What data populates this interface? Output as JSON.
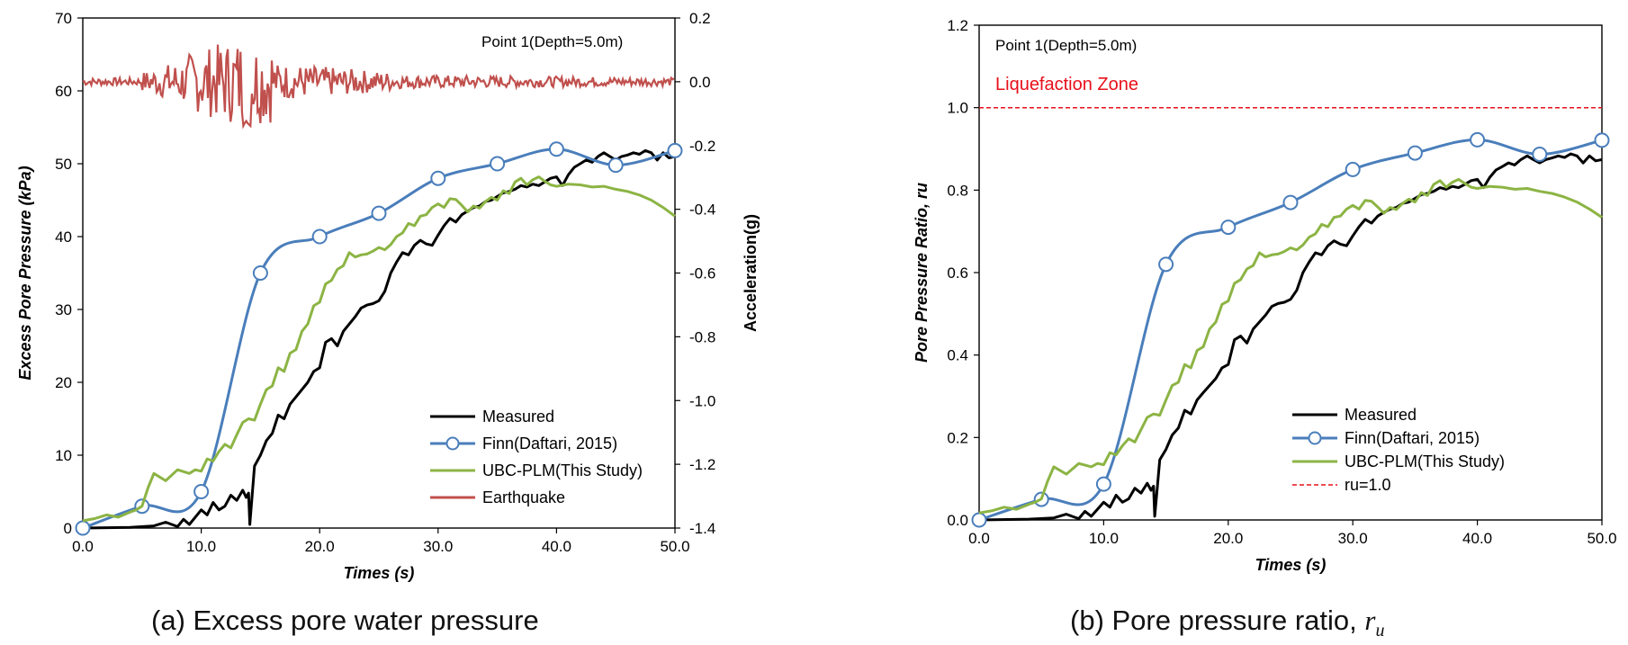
{
  "chart_data": [
    {
      "type": "line",
      "id": "a",
      "annotation": "Point 1(Depth=5.0m)",
      "xlabel": "Times (s)",
      "ylabel": "Excess Pore Pressure (kPa)",
      "y2label": "Acceleration(g)",
      "xlim": [
        0,
        50
      ],
      "ylim": [
        0,
        70
      ],
      "y2lim": [
        -1.4,
        0.2
      ],
      "x_ticks": [
        "0.0",
        "10.0",
        "20.0",
        "30.0",
        "40.0",
        "50.0"
      ],
      "y_ticks": [
        "0",
        "10",
        "20",
        "30",
        "40",
        "50",
        "60",
        "70"
      ],
      "y2_ticks": [
        "-1.4",
        "-1.2",
        "-1.0",
        "-0.8",
        "-0.6",
        "-0.4",
        "-0.2",
        "0.0",
        "0.2"
      ],
      "legend_position": "bottom-right",
      "series": [
        {
          "name": "Measured",
          "color": "#000000",
          "marker": "none",
          "axis": "left",
          "x": [
            0,
            4,
            6,
            7,
            8,
            8.5,
            9,
            9.5,
            10,
            10.5,
            11,
            11.5,
            12,
            12.5,
            13,
            13.5,
            13.8,
            14,
            14.1,
            14.3,
            14.5,
            15,
            15.5,
            16,
            16.5,
            17,
            17.5,
            18,
            18.5,
            19,
            19.5,
            20,
            20.5,
            21,
            21.5,
            22,
            22.5,
            23,
            23.5,
            24,
            24.5,
            25,
            25.5,
            26,
            26.5,
            27,
            27.5,
            28,
            28.5,
            29,
            29.5,
            30,
            30.5,
            31,
            31.5,
            32,
            32.5,
            33,
            33.5,
            34,
            34.5,
            35,
            35.5,
            36,
            36.5,
            37,
            37.5,
            38,
            38.5,
            39,
            39.5,
            40,
            40.5,
            41,
            41.5,
            42,
            42.5,
            43,
            43.5,
            44,
            44.5,
            45,
            45.5,
            46,
            46.5,
            47,
            47.5,
            48,
            48.5,
            49,
            49.5,
            50
          ],
          "values": [
            0,
            0.1,
            0.3,
            0.8,
            0.2,
            1.2,
            0.5,
            1.5,
            2.5,
            1.8,
            3.5,
            2.5,
            3,
            4.5,
            3.8,
            5.2,
            4.2,
            4.8,
            0.5,
            4.5,
            8.5,
            10,
            12,
            13,
            15.5,
            15,
            17,
            18,
            19,
            20,
            21.5,
            22,
            25.5,
            26,
            25,
            27,
            28,
            29,
            30.2,
            30.6,
            30.8,
            31.2,
            32.5,
            35,
            36.5,
            37.8,
            37.5,
            38.8,
            39.5,
            39,
            38.8,
            40.2,
            41.5,
            42.5,
            42,
            43,
            43.5,
            44,
            44.2,
            44.8,
            45,
            45.5,
            46,
            46.2,
            46.5,
            47,
            46.8,
            47.2,
            47,
            47.5,
            48,
            48.2,
            47,
            48.5,
            49.5,
            50,
            50.5,
            50.2,
            51,
            51.5,
            51,
            50.5,
            51,
            51.2,
            51.5,
            51.3,
            51.8,
            51.5,
            50.5,
            51.5,
            50.8,
            51
          ]
        },
        {
          "name": "Finn(Daftari, 2015)",
          "color": "#4a7ebb",
          "marker": "circle",
          "axis": "left",
          "x": [
            0,
            5,
            10,
            15,
            20,
            25,
            30,
            35,
            40,
            45,
            50
          ],
          "values": [
            0,
            3,
            5,
            35,
            40,
            43.2,
            48,
            50,
            52,
            49.8,
            51.8
          ]
        },
        {
          "name": "UBC-PLM(This Study)",
          "color": "#8cb444",
          "marker": "none",
          "axis": "left",
          "x": [
            0,
            1,
            2,
            3,
            4,
            4.5,
            5,
            5.5,
            6,
            7,
            8,
            9,
            9.5,
            10,
            10.5,
            11,
            11.5,
            12,
            12.5,
            13,
            13.5,
            14,
            14.5,
            15,
            15.5,
            16,
            16.5,
            17,
            17.5,
            18,
            18.5,
            19,
            19.5,
            20,
            20.5,
            21,
            21.5,
            22,
            22.5,
            23,
            23.5,
            24,
            24.5,
            25,
            25.5,
            26,
            26.5,
            27,
            27.5,
            28,
            28.5,
            29,
            29.5,
            30,
            30.5,
            31,
            31.5,
            32,
            32.5,
            33,
            33.5,
            34,
            34.5,
            35,
            35.5,
            36,
            36.5,
            37,
            37.5,
            38,
            38.5,
            39,
            39.5,
            40,
            41,
            42,
            43,
            44,
            45,
            46,
            47,
            48,
            49,
            50
          ],
          "values": [
            1,
            1.3,
            1.8,
            1.5,
            2.2,
            2.5,
            3,
            5.5,
            7.5,
            6.5,
            8,
            7.5,
            8,
            7.8,
            9.5,
            9.2,
            10.5,
            11.5,
            11,
            12.8,
            14.5,
            15,
            14.8,
            17,
            19,
            19.5,
            22,
            21.5,
            24,
            24.5,
            27,
            28,
            30.5,
            31,
            33.5,
            34,
            35.5,
            36,
            37.8,
            37.2,
            37.5,
            37.6,
            38,
            38.5,
            38.2,
            38.9,
            40,
            40.5,
            41.8,
            41.5,
            42.8,
            43,
            44,
            44.5,
            44,
            45.2,
            45.1,
            44.3,
            43.4,
            44.2,
            43.9,
            44.8,
            45.4,
            45,
            46.3,
            45.9,
            47.5,
            48,
            47.1,
            47.8,
            48.2,
            47.6,
            47.1,
            46.9,
            47.2,
            47.1,
            46.8,
            46.9,
            46.5,
            46.2,
            45.7,
            45,
            44,
            42.8
          ]
        },
        {
          "name": "Earthquake",
          "color": "#c0504d",
          "marker": "none",
          "axis": "right",
          "x_range": [
            0,
            50
          ],
          "amplitude": 0.15
        }
      ]
    },
    {
      "type": "line",
      "id": "b",
      "annotation": "Point 1(Depth=5.0m)",
      "zone_label": "Liquefaction Zone",
      "xlabel": "Times (s)",
      "ylabel": "Pore Pressure Ratio, ru",
      "xlim": [
        0,
        50
      ],
      "ylim": [
        0,
        1.2
      ],
      "x_ticks": [
        "0.0",
        "10.0",
        "20.0",
        "30.0",
        "40.0",
        "50.0"
      ],
      "y_ticks": [
        "0.0",
        "0.2",
        "0.4",
        "0.6",
        "0.8",
        "1.0",
        "1.2"
      ],
      "legend_position": "bottom-right",
      "series": [
        {
          "name": "Measured",
          "color": "#000000",
          "marker": "none",
          "x": [
            0,
            4,
            6,
            7,
            8,
            8.5,
            9,
            9.5,
            10,
            10.5,
            11,
            11.5,
            12,
            12.5,
            13,
            13.5,
            13.8,
            14,
            14.1,
            14.3,
            14.5,
            15,
            15.5,
            16,
            16.5,
            17,
            17.5,
            18,
            18.5,
            19,
            19.5,
            20,
            20.5,
            21,
            21.5,
            22,
            22.5,
            23,
            23.5,
            24,
            24.5,
            25,
            25.5,
            26,
            26.5,
            27,
            27.5,
            28,
            28.5,
            29,
            29.5,
            30,
            30.5,
            31,
            31.5,
            32,
            32.5,
            33,
            33.5,
            34,
            34.5,
            35,
            35.5,
            36,
            36.5,
            37,
            37.5,
            38,
            38.5,
            39,
            39.5,
            40,
            40.5,
            41,
            41.5,
            42,
            42.5,
            43,
            43.5,
            44,
            44.5,
            45,
            45.5,
            46,
            46.5,
            47,
            47.5,
            48,
            48.5,
            49,
            49.5,
            50
          ],
          "values": [
            0,
            0.002,
            0.005,
            0.014,
            0.003,
            0.021,
            0.009,
            0.026,
            0.043,
            0.031,
            0.06,
            0.043,
            0.051,
            0.077,
            0.065,
            0.089,
            0.072,
            0.082,
            0.009,
            0.077,
            0.146,
            0.171,
            0.206,
            0.223,
            0.266,
            0.257,
            0.291,
            0.309,
            0.326,
            0.343,
            0.369,
            0.377,
            0.437,
            0.446,
            0.429,
            0.463,
            0.48,
            0.497,
            0.518,
            0.525,
            0.528,
            0.535,
            0.557,
            0.6,
            0.626,
            0.648,
            0.643,
            0.665,
            0.677,
            0.669,
            0.665,
            0.689,
            0.711,
            0.729,
            0.72,
            0.737,
            0.746,
            0.754,
            0.758,
            0.768,
            0.771,
            0.78,
            0.789,
            0.792,
            0.797,
            0.806,
            0.802,
            0.809,
            0.806,
            0.814,
            0.823,
            0.826,
            0.806,
            0.831,
            0.849,
            0.857,
            0.866,
            0.861,
            0.874,
            0.883,
            0.874,
            0.866,
            0.874,
            0.878,
            0.883,
            0.879,
            0.888,
            0.883,
            0.866,
            0.883,
            0.871,
            0.874
          ]
        },
        {
          "name": "Finn(Daftari, 2015)",
          "color": "#4a7ebb",
          "marker": "circle",
          "x": [
            0,
            5,
            10,
            15,
            20,
            25,
            30,
            35,
            40,
            45,
            50
          ],
          "values": [
            0,
            0.05,
            0.087,
            0.62,
            0.71,
            0.77,
            0.85,
            0.89,
            0.922,
            0.887,
            0.921
          ]
        },
        {
          "name": "UBC-PLM(This Study)",
          "color": "#8cb444",
          "marker": "none",
          "x": [
            0,
            1,
            2,
            3,
            4,
            4.5,
            5,
            5.5,
            6,
            7,
            8,
            9,
            9.5,
            10,
            10.5,
            11,
            11.5,
            12,
            12.5,
            13,
            13.5,
            14,
            14.5,
            15,
            15.5,
            16,
            16.5,
            17,
            17.5,
            18,
            18.5,
            19,
            19.5,
            20,
            20.5,
            21,
            21.5,
            22,
            22.5,
            23,
            23.5,
            24,
            24.5,
            25,
            25.5,
            26,
            26.5,
            27,
            27.5,
            28,
            28.5,
            29,
            29.5,
            30,
            30.5,
            31,
            31.5,
            32,
            32.5,
            33,
            33.5,
            34,
            34.5,
            35,
            35.5,
            36,
            36.5,
            37,
            37.5,
            38,
            38.5,
            39,
            39.5,
            40,
            41,
            42,
            43,
            44,
            45,
            46,
            47,
            48,
            49,
            50
          ],
          "values": [
            0.017,
            0.022,
            0.031,
            0.026,
            0.038,
            0.043,
            0.051,
            0.094,
            0.129,
            0.111,
            0.137,
            0.129,
            0.137,
            0.134,
            0.163,
            0.158,
            0.18,
            0.197,
            0.189,
            0.219,
            0.249,
            0.257,
            0.254,
            0.291,
            0.326,
            0.334,
            0.377,
            0.369,
            0.411,
            0.42,
            0.463,
            0.48,
            0.523,
            0.531,
            0.574,
            0.583,
            0.609,
            0.617,
            0.648,
            0.638,
            0.643,
            0.645,
            0.651,
            0.66,
            0.655,
            0.667,
            0.686,
            0.694,
            0.717,
            0.711,
            0.734,
            0.737,
            0.754,
            0.763,
            0.754,
            0.775,
            0.773,
            0.759,
            0.744,
            0.758,
            0.753,
            0.768,
            0.778,
            0.771,
            0.794,
            0.787,
            0.814,
            0.823,
            0.807,
            0.819,
            0.826,
            0.816,
            0.807,
            0.804,
            0.809,
            0.807,
            0.802,
            0.804,
            0.797,
            0.792,
            0.783,
            0.771,
            0.754,
            0.734
          ]
        },
        {
          "name": "ru=1.0",
          "color": "#e8101a",
          "marker": "none",
          "dashed": true,
          "x": [
            0,
            50
          ],
          "values": [
            1.0,
            1.0
          ]
        }
      ]
    }
  ],
  "captions": {
    "a": "(a) Excess pore water pressure",
    "b_text": "(b) Pore pressure ratio,",
    "b_symbol": "r",
    "b_subscript": "u"
  }
}
